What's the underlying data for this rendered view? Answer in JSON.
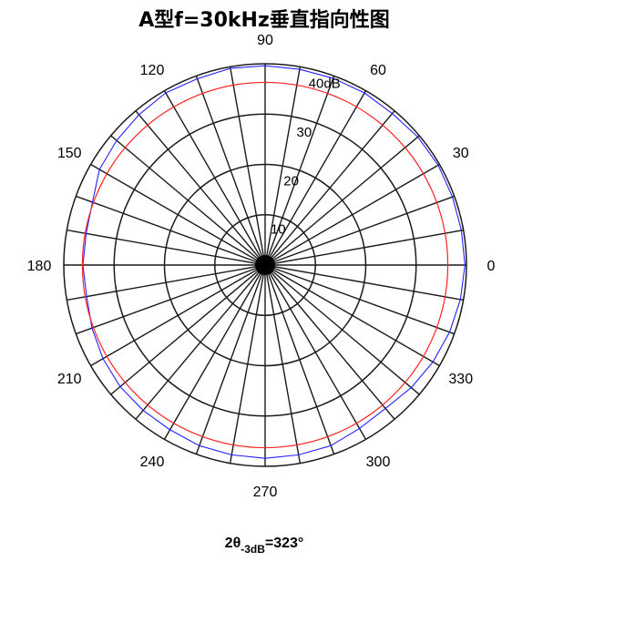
{
  "chart_data": {
    "type": "polar",
    "title": "A型f=30kHz垂直指向性图",
    "angle_unit": "deg",
    "angle_ticks": [
      "0",
      "30",
      "60",
      "90",
      "120",
      "150",
      "180",
      "210",
      "240",
      "270",
      "300",
      "330"
    ],
    "radial_range": [
      0,
      40
    ],
    "radial_ticks": [
      "10",
      "20",
      "30",
      "40dB"
    ],
    "spoke_step_deg": 10,
    "grid": true,
    "colors": {
      "measured": "#2222ff",
      "reference": "#ff2222",
      "grid": "#1a1a1a"
    },
    "series": [
      {
        "role": "measured",
        "angles": [
          0,
          10,
          20,
          30,
          40,
          50,
          60,
          70,
          80,
          90,
          100,
          110,
          120,
          130,
          140,
          150,
          160,
          170,
          180,
          190,
          200,
          210,
          220,
          230,
          240,
          250,
          260,
          270,
          280,
          290,
          300,
          310,
          320,
          330,
          340,
          350,
          360
        ],
        "values": [
          39.7,
          39.6,
          39.6,
          39.7,
          39.6,
          39.3,
          39.5,
          39.5,
          39.5,
          39.6,
          39.7,
          39.4,
          39.5,
          39.0,
          38.5,
          38.0,
          36.5,
          36.1,
          36.2,
          36.0,
          36.6,
          37.2,
          37.6,
          37.7,
          37.8,
          38.2,
          38.3,
          38.4,
          38.3,
          38.2,
          37.5,
          37.2,
          37.9,
          38.5,
          39.0,
          39.4,
          39.7
        ]
      },
      {
        "role": "reference",
        "angles": [
          0,
          90,
          180,
          270
        ],
        "values": [
          36.3,
          36.3,
          36.3,
          36.3
        ]
      }
    ],
    "annotation": {
      "symbol": "2θ",
      "subscript": "-3dB",
      "value": "=323°"
    }
  }
}
